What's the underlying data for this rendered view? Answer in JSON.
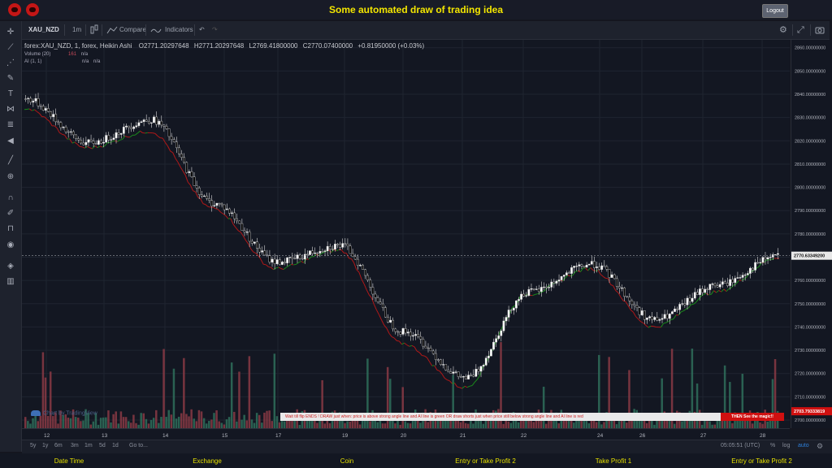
{
  "app": {
    "title": "Some automated draw of trading idea",
    "logout_label": "Logout"
  },
  "toolbar": {
    "symbol": "XAU_NZD",
    "interval": "1m",
    "compare_label": "Compare",
    "indicators_label": "Indicators"
  },
  "legend": {
    "main": "forex:XAU_NZD, 1, forex, Heikin Ashi",
    "open": "O2771.20297648",
    "high": "H2771.20297648",
    "low": "L2769.41800000",
    "close": "C2770.07400000",
    "change": "+0.81950000 (+0.03%)",
    "volume_name": "Volume (20)",
    "volume_value": "161",
    "volume_na": "n/a",
    "ai_name": "AI (1, 1)",
    "ai_na1": "n/a",
    "ai_na2": "n/a"
  },
  "price_scale": {
    "labels": [
      "2860.00000000",
      "2850.00000000",
      "2840.00000000",
      "2830.00000000",
      "2820.00000000",
      "2810.00000000",
      "2800.00000000",
      "2790.00000000",
      "2780.00000000",
      "2770.00000000",
      "2760.00000000",
      "2750.00000000",
      "2740.00000000",
      "2730.00000000",
      "2720.00000000",
      "2710.00000000",
      "2700.00000000"
    ],
    "current_price": "2770.63349200",
    "current_color": "#e8e8e8",
    "lower_tag": "2703.79333819",
    "lower_tag_color": "#d01010"
  },
  "time_scale": {
    "labels": [
      "12",
      "13",
      "14",
      "15",
      "17",
      "19",
      "20",
      "21",
      "22",
      "24",
      "26",
      "27",
      "28"
    ]
  },
  "ranges": [
    "5y",
    "1y",
    "6m",
    "3m",
    "1m",
    "5d",
    "1d"
  ],
  "goto_label": "Go to...",
  "clock": "05:05:51 (UTC)",
  "bottom_options": [
    "%",
    "log",
    "auto"
  ],
  "banner": {
    "text": "Wait till flip ENDS !  DRAW just when:  price is above strong angle line and AI line is green     OR     draw shorts just when price still below strong angle line and AI line is red",
    "highlight": "THEN See the magic!!"
  },
  "watermark": "Chart by TradingView",
  "footer": [
    "Date Time",
    "Exchange",
    "Coin",
    "Entry or Take Profit 2",
    "Take Profit 1",
    "Entry or Take Profit 2"
  ],
  "colors": {
    "bg": "#131722",
    "bull_candle": "#ffffff",
    "bear_candle": "#000000",
    "ai_green": "#1b8a1b",
    "ai_red": "#b01818",
    "vol_green": "#2f6e5a",
    "vol_red": "#8a3a44"
  },
  "chart_data": {
    "type": "line",
    "title": "forex:XAU_NZD, 1, forex, Heikin Ashi",
    "style": "heikin-ashi candlesticks with AI overlay line and volume",
    "x": [
      "12",
      "13",
      "14",
      "15",
      "17",
      "19",
      "20",
      "21",
      "22",
      "24",
      "26",
      "27",
      "28"
    ],
    "series": [
      {
        "name": "price",
        "values": [
          2838,
          2819,
          2829,
          2793,
          2768,
          2775,
          2738,
          2718,
          2755,
          2767,
          2743,
          2758,
          2771
        ]
      },
      {
        "name": "AI (1, 1)",
        "values": [
          2834,
          2817,
          2824,
          2791,
          2765,
          2773,
          2733,
          2714,
          2754,
          2765,
          2740,
          2755,
          2770
        ]
      }
    ],
    "ylim": [
      2700,
      2862
    ],
    "grid": true
  }
}
